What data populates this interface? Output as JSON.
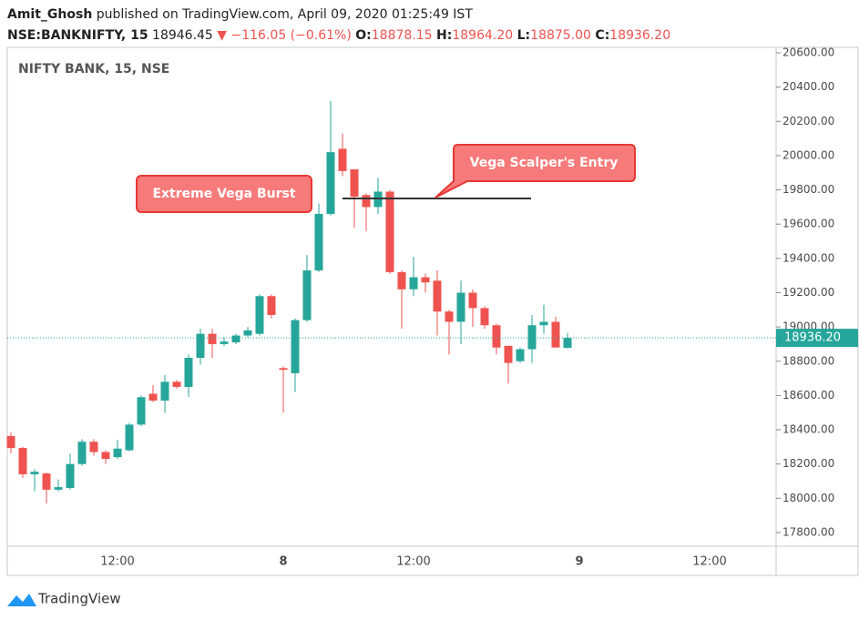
{
  "header": {
    "author": "Amit_Ghosh",
    "published": "published on TradingView.com, April 09, 2020 01:25:49 IST",
    "symbol": "NSE:BANKNIFTY, 15",
    "price": "18946.45",
    "change": "▼ −116.05 (−0.61%)",
    "ohlc": [
      {
        "label": "O:",
        "value": "18878.15"
      },
      {
        "label": "H:",
        "value": "18964.20"
      },
      {
        "label": "L:",
        "value": "18875.00"
      },
      {
        "label": "C:",
        "value": "18936.20"
      }
    ]
  },
  "chart_data": {
    "type": "candlestick",
    "legend": "NIFTY BANK, 15, NSE",
    "up_color": "#26a69a",
    "down_color": "#ef5350",
    "categories": [
      null,
      null,
      null,
      null,
      null,
      null,
      null,
      null,
      null,
      "12:00",
      null,
      null,
      null,
      null,
      null,
      null,
      null,
      null,
      null,
      null,
      null,
      null,
      null,
      "8",
      null,
      null,
      null,
      null,
      null,
      null,
      null,
      null,
      null,
      null,
      "12:00",
      null,
      null,
      null,
      null,
      null,
      null,
      null,
      null,
      null,
      null,
      null,
      null,
      null,
      "9",
      null,
      null,
      null,
      null,
      null,
      null,
      null,
      null,
      null,
      null,
      "12:00",
      null,
      null,
      null,
      null,
      null
    ],
    "open": [
      18363,
      18294,
      18140,
      18145,
      18050,
      18060,
      18200,
      18330,
      18270,
      18240,
      18280,
      18430,
      18610,
      18570,
      18680,
      18650,
      18820,
      18960,
      18900,
      18910,
      18950,
      18960,
      19180,
      18760,
      18730,
      19040,
      19330,
      19660,
      20040,
      19920,
      19770,
      19700,
      19790,
      19320,
      19220,
      19290,
      19270,
      19090,
      19030,
      19200,
      19110,
      19010,
      18890,
      18800,
      18870,
      19010,
      19030,
      18878.15,
      null,
      null,
      null,
      null,
      null,
      null,
      null,
      null,
      null,
      null,
      null,
      null,
      null,
      null,
      null,
      null,
      null
    ],
    "high": [
      18384,
      18300,
      18170,
      18150,
      18110,
      18260,
      18345,
      18345,
      18280,
      18340,
      18440,
      18600,
      18660,
      18720,
      18690,
      18840,
      18990,
      18990,
      18940,
      18960,
      19000,
      19190,
      19190,
      18770,
      19050,
      19420,
      19720,
      20320,
      20130,
      19920,
      19780,
      19870,
      19800,
      19330,
      19410,
      19310,
      19330,
      19100,
      19270,
      19220,
      19120,
      19020,
      18890,
      18880,
      19070,
      19130,
      19060,
      18964.2,
      null,
      null,
      null,
      null,
      null,
      null,
      null,
      null,
      null,
      null,
      null,
      null,
      null,
      null,
      null,
      null,
      null
    ],
    "low": [
      18262,
      18119,
      18040,
      17970,
      18040,
      18050,
      18190,
      18250,
      18200,
      18230,
      18275,
      18420,
      18560,
      18500,
      18640,
      18590,
      18780,
      18820,
      18890,
      18900,
      18940,
      18950,
      19050,
      18500,
      18620,
      19030,
      19320,
      19650,
      19880,
      19580,
      19560,
      19660,
      19310,
      18990,
      19180,
      19200,
      18950,
      18840,
      18900,
      19000,
      18990,
      18840,
      18670,
      18790,
      18790,
      18960,
      18880,
      18875,
      null,
      null,
      null,
      null,
      null,
      null,
      null,
      null,
      null,
      null,
      null,
      null,
      null,
      null,
      null,
      null,
      null
    ],
    "close": [
      18294,
      18140,
      18155,
      18050,
      18065,
      18200,
      18330,
      18270,
      18230,
      18290,
      18430,
      18590,
      18570,
      18680,
      18650,
      18820,
      18960,
      18900,
      18915,
      18950,
      18980,
      19180,
      19070,
      18750,
      19040,
      19330,
      19660,
      20020,
      19910,
      19760,
      19700,
      19790,
      19320,
      19220,
      19290,
      19260,
      19090,
      19030,
      19200,
      19110,
      19010,
      18880,
      18790,
      18870,
      19010,
      19030,
      18880,
      18936.2,
      null,
      null,
      null,
      null,
      null,
      null,
      null,
      null,
      null,
      null,
      null,
      null,
      null,
      null,
      null,
      null,
      null
    ],
    "ylim": [
      17720,
      20632
    ],
    "yticks": [
      {
        "value": 17800,
        "label": "17800.00"
      },
      {
        "value": 18000,
        "label": "18000.00"
      },
      {
        "value": 18200,
        "label": "18200.00"
      },
      {
        "value": 18400,
        "label": "18400.00"
      },
      {
        "value": 18600,
        "label": "18600.00"
      },
      {
        "value": 18800,
        "label": "18800.00"
      },
      {
        "value": 19000,
        "label": "19000.00"
      },
      {
        "value": 19200,
        "label": "19200.00"
      },
      {
        "value": 19400,
        "label": "19400.00"
      },
      {
        "value": 19600,
        "label": "19600.00"
      },
      {
        "value": 19800,
        "label": "19800.00"
      },
      {
        "value": 20000,
        "label": "20000.00"
      },
      {
        "value": 20200,
        "label": "20200.00"
      },
      {
        "value": 20400,
        "label": "20400.00"
      },
      {
        "value": 20600,
        "label": "20600.00"
      }
    ],
    "last_price": {
      "value": 18936.2,
      "label": "18936.20"
    },
    "level_line": 19750,
    "annotations": [
      "Extreme Vega Burst",
      "Vega Scalper's Entry"
    ]
  },
  "footer": {
    "brand": "TradingView"
  }
}
